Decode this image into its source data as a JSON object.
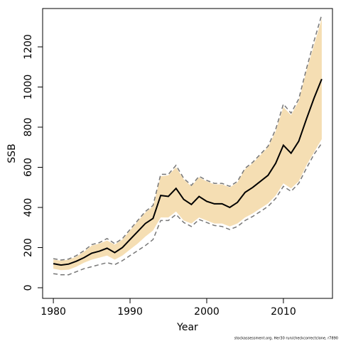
{
  "chart_data": {
    "type": "line",
    "xlabel": "Year",
    "ylabel": "SSB",
    "footnote": "stockassessment.org, Her30 run/checkcorrectclone, r7890",
    "x": [
      1980,
      1981,
      1982,
      1983,
      1984,
      1985,
      1986,
      1987,
      1988,
      1989,
      1990,
      1991,
      1992,
      1993,
      1994,
      1995,
      1996,
      1997,
      1998,
      1999,
      2000,
      2001,
      2002,
      2003,
      2004,
      2005,
      2006,
      2007,
      2008,
      2009,
      2010,
      2011,
      2012,
      2013,
      2014,
      2015
    ],
    "values": [
      120,
      113,
      118,
      132,
      150,
      172,
      182,
      197,
      175,
      200,
      240,
      280,
      320,
      345,
      460,
      455,
      495,
      440,
      415,
      455,
      430,
      418,
      418,
      400,
      425,
      475,
      500,
      530,
      560,
      620,
      710,
      670,
      730,
      840,
      945,
      1040
    ],
    "band_high": [
      140,
      135,
      140,
      155,
      180,
      210,
      220,
      235,
      215,
      240,
      285,
      330,
      375,
      405,
      555,
      560,
      600,
      540,
      505,
      550,
      530,
      515,
      515,
      500,
      525,
      590,
      620,
      660,
      700,
      780,
      900,
      860,
      930,
      1080,
      1210,
      1340
    ],
    "band_low": [
      95,
      88,
      90,
      105,
      125,
      140,
      150,
      160,
      140,
      160,
      190,
      220,
      255,
      285,
      350,
      350,
      380,
      335,
      320,
      350,
      335,
      320,
      320,
      305,
      320,
      350,
      370,
      395,
      420,
      460,
      520,
      495,
      530,
      610,
      675,
      740
    ],
    "dashed_high": [
      145,
      138,
      143,
      160,
      185,
      215,
      225,
      245,
      220,
      245,
      290,
      335,
      380,
      410,
      565,
      565,
      610,
      545,
      510,
      555,
      535,
      520,
      520,
      505,
      530,
      595,
      625,
      665,
      705,
      790,
      915,
      870,
      940,
      1090,
      1230,
      1360
    ],
    "dashed_low": [
      70,
      65,
      65,
      80,
      95,
      105,
      115,
      125,
      115,
      135,
      160,
      185,
      210,
      240,
      335,
      335,
      365,
      325,
      305,
      340,
      325,
      310,
      305,
      290,
      305,
      335,
      355,
      380,
      405,
      445,
      505,
      480,
      520,
      595,
      665,
      720
    ],
    "color": "#000000",
    "band_color": "#f5deb3",
    "dashed_color": "#777777",
    "xlim": [
      1978.6,
      2016.4
    ],
    "ylim": [
      -53,
      1391
    ],
    "xticks": [
      1980,
      1990,
      2000,
      2010
    ],
    "yticks": [
      0,
      200,
      400,
      600,
      800,
      1000,
      1200
    ]
  }
}
